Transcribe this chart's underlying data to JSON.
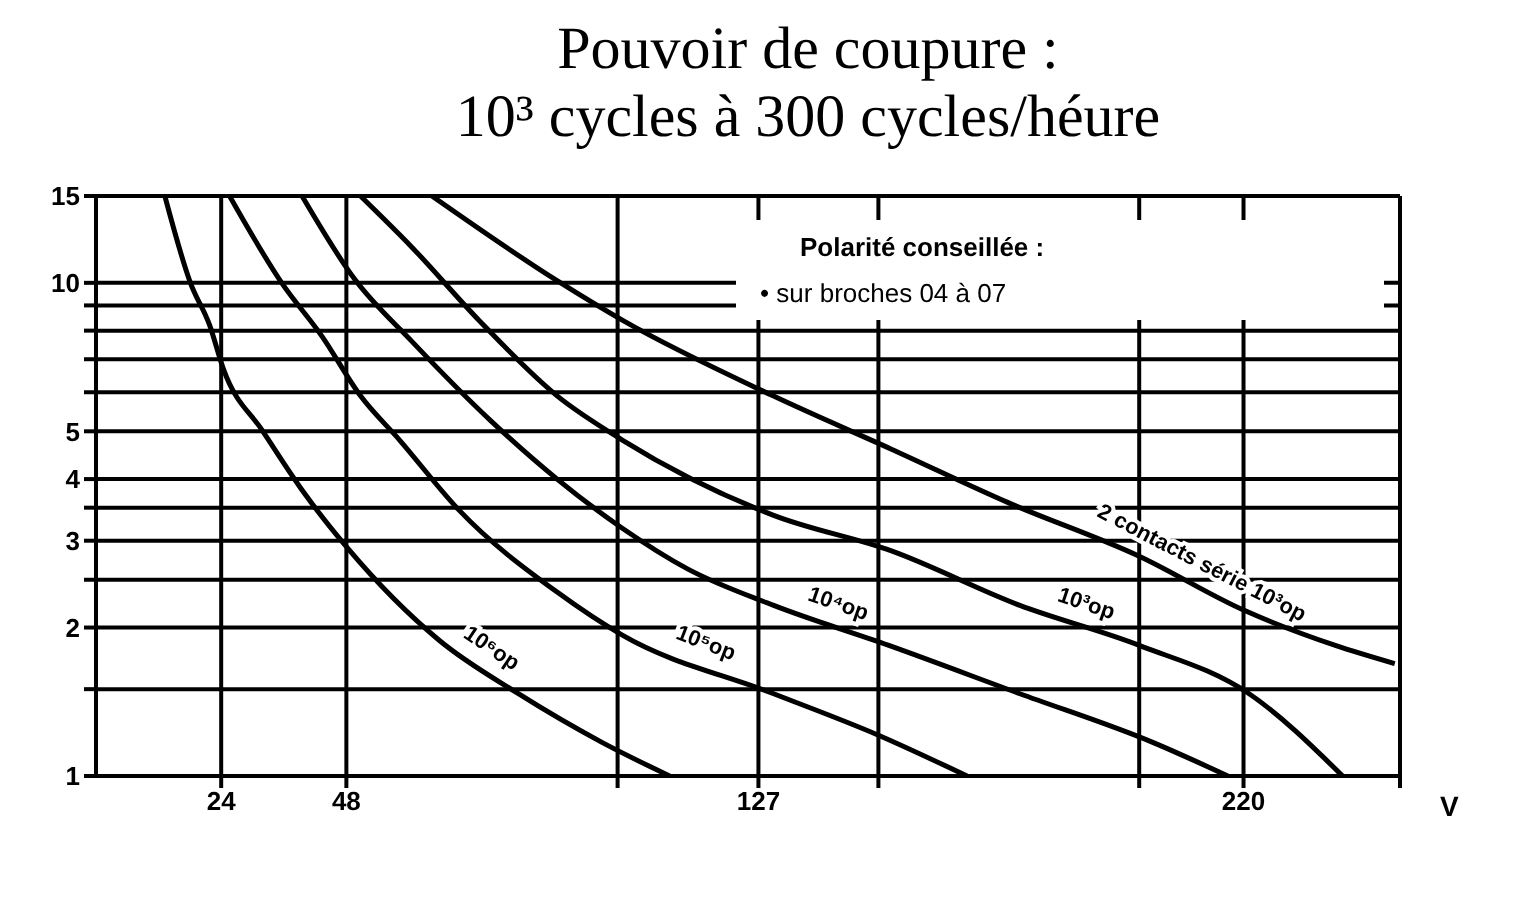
{
  "chart_data": {
    "type": "line",
    "title": "Pouvoir de coupure :",
    "subtitle": "10³ cycles à 300 cycles/héure",
    "xlabel": "V",
    "annotations": [
      "Polarité conseillée :",
      "• sur broches 04 à 07"
    ],
    "log": "y",
    "grid": true,
    "marker": "none",
    "line_style": "solid",
    "xlim": [
      0,
      250
    ],
    "xticks": [
      24,
      48,
      127,
      220,
      {
        "value": 100,
        "label": null
      },
      {
        "value": 150,
        "label": null
      },
      {
        "value": 200,
        "label": null
      },
      {
        "value": 250,
        "label": null
      }
    ],
    "ylim": [
      1,
      15
    ],
    "yticks": [
      1,
      {
        "value": 1.5,
        "label": null
      },
      2,
      {
        "value": 2.5,
        "label": null
      },
      3,
      {
        "value": 3.5,
        "label": null
      },
      4,
      5,
      {
        "value": 6,
        "label": null
      },
      {
        "value": 7,
        "label": null
      },
      {
        "value": 8,
        "label": null
      },
      {
        "value": 9,
        "label": null
      },
      10,
      15
    ],
    "series": [
      {
        "name": "10⁶op",
        "color": "#000000",
        "x": [
          13.2,
          18.1,
          21.8,
          24.4,
          32,
          39.5,
          48.2,
          65.9,
          80.9,
          97,
          110
        ],
        "values": [
          15,
          10,
          8.2,
          6.7,
          5,
          3.8,
          2.9,
          1.88,
          1.47,
          1.17,
          1
        ]
      },
      {
        "name": "10⁵op",
        "color": "#000000",
        "x": [
          25.6,
          35.6,
          43.3,
          50.7,
          58.2,
          69.6,
          88.4,
          100.9,
          129.8,
          150,
          167
        ],
        "values": [
          15,
          10,
          7.8,
          5.9,
          4.8,
          3.46,
          2.36,
          1.93,
          1.47,
          1.21,
          1
        ]
      },
      {
        "name": "10⁴op",
        "color": "#000000",
        "x": [
          39.5,
          49.5,
          60.6,
          75.7,
          88.4,
          100.9,
          113.4,
          129.8,
          152,
          177,
          202.6,
          217
        ],
        "values": [
          15,
          10.2,
          7.6,
          5.25,
          4,
          3.18,
          2.63,
          2.22,
          1.84,
          1.47,
          1.17,
          1
        ]
      },
      {
        "name": "10³op",
        "color": "#000000",
        "x": [
          50.7,
          60.6,
          73.4,
          88.4,
          100.9,
          129.8,
          152.5,
          177,
          200,
          221,
          239
        ],
        "values": [
          15,
          11.8,
          8.4,
          5.9,
          4.8,
          3.38,
          2.86,
          2.22,
          1.84,
          1.47,
          1
        ]
      },
      {
        "name": "2 contacts série 10³op",
        "color": "#000000",
        "x": [
          64.4,
          88.4,
          100.9,
          129.8,
          152.5,
          175,
          200,
          220,
          237.6,
          249
        ],
        "values": [
          15,
          10.1,
          8.4,
          5.9,
          4.6,
          3.58,
          2.79,
          2.17,
          1.84,
          1.69
        ]
      }
    ]
  }
}
